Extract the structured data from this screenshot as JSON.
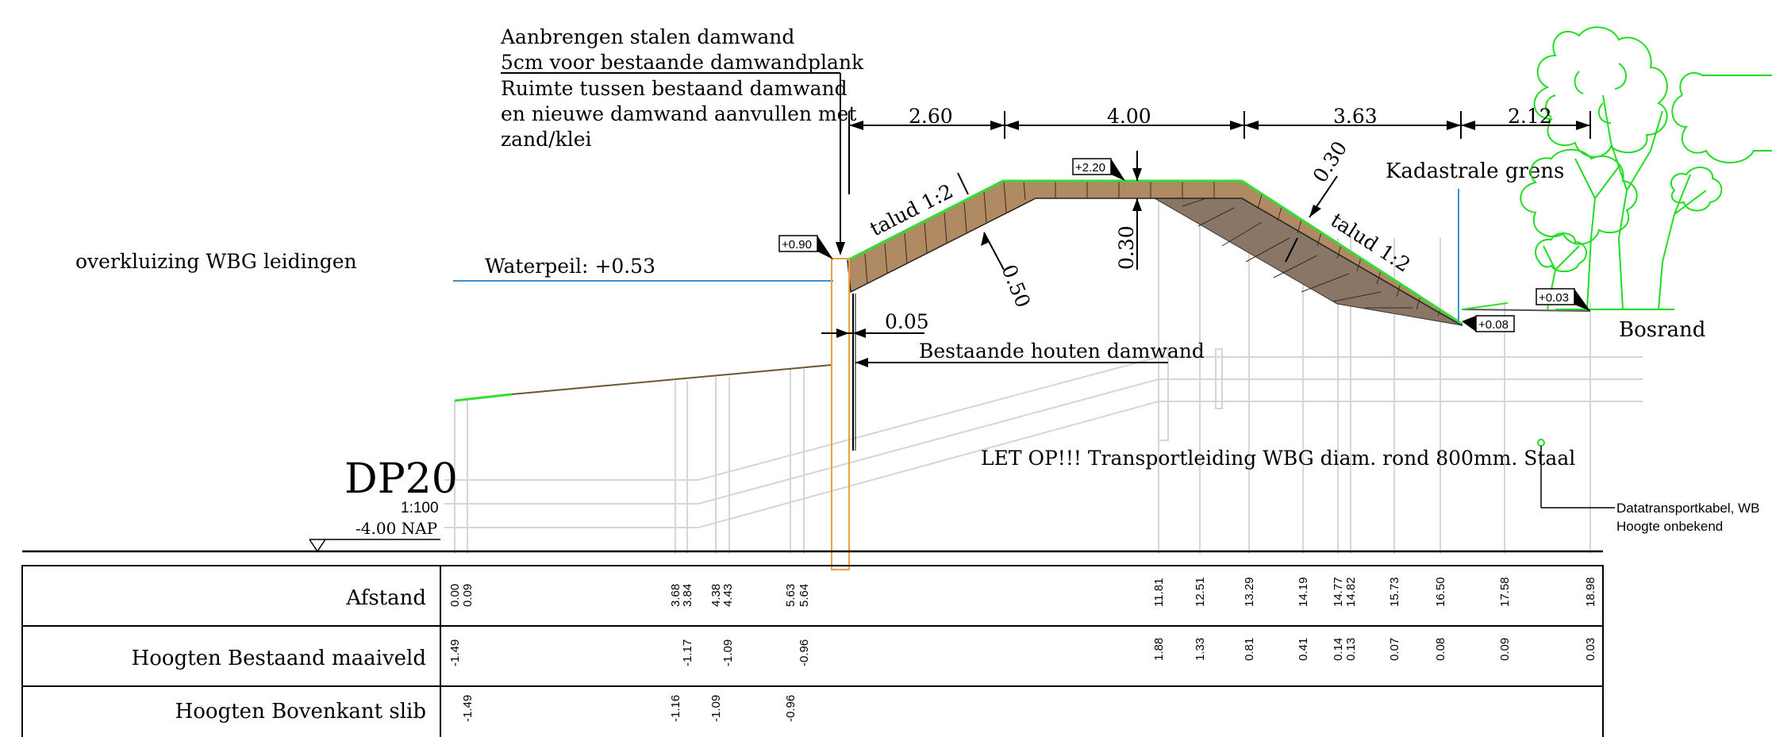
{
  "title": "DP20",
  "scale": "1:100",
  "reference_level": "-4.00  NAP",
  "left_label": "overkluizing WBG leidingen",
  "note": {
    "lines": [
      "Aanbrengen stalen damwand",
      "5cm voor bestaande damwandplank",
      "Ruimte tussen bestaand damwand",
      "en nieuwe damwand aanvullen met",
      "zand/klei"
    ]
  },
  "waterpeil": "Waterpeil: +0.53",
  "dimensions": {
    "top": [
      "2.60",
      "4.00",
      "3.63",
      "2.12"
    ],
    "gap": "0.05",
    "layer_left": "0.50",
    "layer_right": "0.30",
    "layer_mid": "0.30"
  },
  "slope_left": "talud 1:2",
  "slope_right": "talud 1:2",
  "levels": {
    "left_top": "+0.90",
    "crest": "+2.20",
    "right_toe": "+0.08",
    "bosrand": "+0.03"
  },
  "labels": {
    "kadastrale": "Kadastrale grens",
    "bosrand": "Bosrand",
    "houten": "Bestaande houten damwand",
    "letop": "LET OP!!!   Transportleiding WBG diam. rond 800mm.  Staal",
    "kabel_line1": "Datatransportkabel, WB",
    "kabel_line2": "Hoogte onbekend"
  },
  "table": {
    "rows": [
      {
        "label": "Afstand",
        "values": [
          "0.00",
          "0.09",
          "3.68",
          "3.84",
          "4.38",
          "4.43",
          "5.63",
          "5.64",
          "11.81",
          "12.51",
          "13.29",
          "14.19",
          "14.77",
          "14.82",
          "15.73",
          "16.50",
          "17.58",
          "18.98"
        ]
      },
      {
        "label": "Hoogten Bestaand maaiveld",
        "values": [
          "-1.49",
          "-1.17",
          "-1.09",
          "-0.96",
          "1.88",
          "1.33",
          "0.81",
          "0.41",
          "0.14",
          "0.13",
          "0.07",
          "0.08",
          "0.09",
          "0.03"
        ]
      },
      {
        "label": "Hoogten Bovenkant slib",
        "values": [
          "-1.49",
          "-1.16",
          "-1.09",
          "-0.96"
        ]
      }
    ]
  },
  "colors": {
    "dike_fill": "#b08a62",
    "clay_fill": "#8a7666",
    "green": "#33dd33",
    "water": "#3b8fd9",
    "sheet_pile": "#f0a040",
    "pipes": "#d9d9d9"
  }
}
